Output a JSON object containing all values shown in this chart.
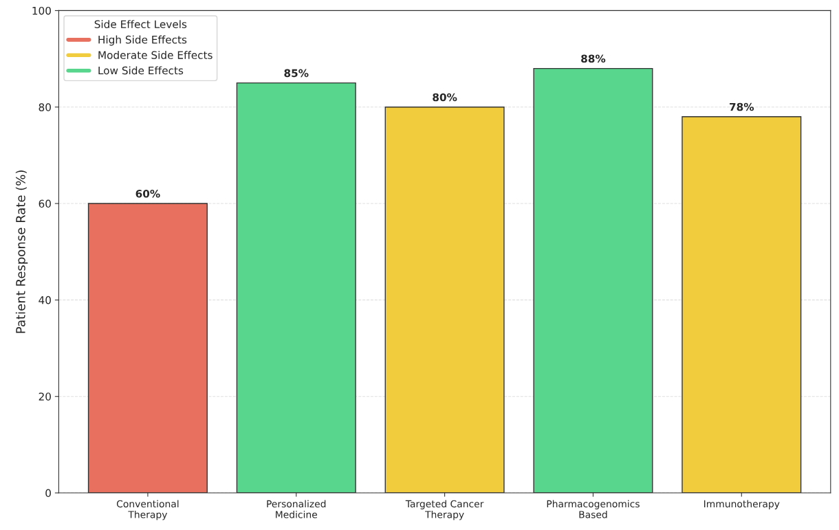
{
  "chart_data": {
    "type": "bar",
    "ylabel": "Patient Response Rate (%)",
    "legend_title": "Side Effect Levels",
    "categories": [
      "Conventional\nTherapy",
      "Personalized\nMedicine",
      "Targeted Cancer\nTherapy",
      "Pharmacogenomics\nBased",
      "Immunotherapy"
    ],
    "series": [
      {
        "name": "High Side Effects",
        "color": "#e8705f",
        "values": [
          60,
          null,
          null,
          null,
          null
        ],
        "value_labels": [
          "60%",
          null,
          null,
          null,
          null
        ]
      },
      {
        "name": "Moderate Side Effects",
        "color": "#f1cc3c",
        "values": [
          null,
          null,
          80,
          null,
          78
        ],
        "value_labels": [
          null,
          null,
          "80%",
          null,
          "78%"
        ]
      },
      {
        "name": "Low Side Effects",
        "color": "#58d68d",
        "values": [
          null,
          85,
          null,
          88,
          null
        ],
        "value_labels": [
          null,
          "85%",
          null,
          "88%",
          null
        ]
      }
    ],
    "ylim": [
      0,
      100
    ],
    "yticks": [
      0,
      20,
      40,
      60,
      80,
      100
    ],
    "grid": "y",
    "legend": "top left"
  }
}
